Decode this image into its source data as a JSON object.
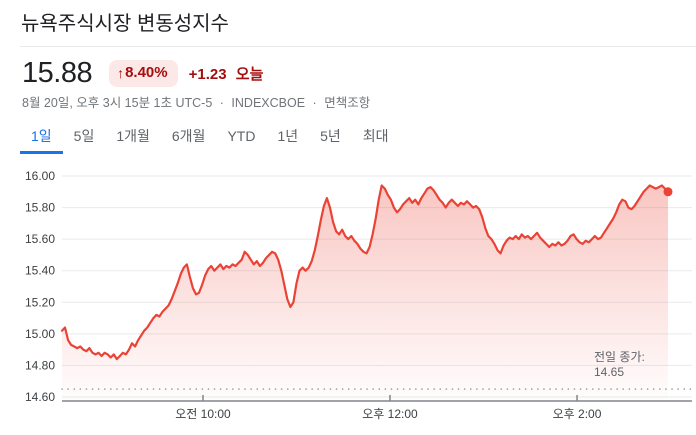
{
  "header": {
    "title": "뉴욕주식시장 변동성지수"
  },
  "quote": {
    "price": "15.88",
    "change_arrow": "↑",
    "change_percent": "8.40%",
    "change_abs": "+1.23",
    "change_period": "오늘",
    "meta_datetime": "8월 20일, 오후 3시 15분 1초 UTC-5",
    "meta_separator": "·",
    "meta_exchange": "INDEXCBOE",
    "meta_disclaimer": "면책조항",
    "colors": {
      "change_text": "#a50e0e",
      "badge_bg": "#fce8e6",
      "accent_blue": "#1a73e8",
      "line_red": "#ea4335"
    }
  },
  "range_tabs": [
    {
      "label": "1일",
      "active": true
    },
    {
      "label": "5일",
      "active": false
    },
    {
      "label": "1개월",
      "active": false
    },
    {
      "label": "6개월",
      "active": false
    },
    {
      "label": "YTD",
      "active": false
    },
    {
      "label": "1년",
      "active": false
    },
    {
      "label": "5년",
      "active": false
    },
    {
      "label": "최대",
      "active": false
    }
  ],
  "chart_data": {
    "type": "area",
    "title": "뉴욕주식시장 변동성지수 1일 차트",
    "xlabel": "",
    "ylabel": "",
    "ylim": [
      14.6,
      16.0
    ],
    "grid": true,
    "line_color": "#ea4335",
    "fill_color": "#ea4335",
    "axis_color": "#80868b",
    "grid_color": "#e8eaed",
    "tick_label_color": "#3c4043",
    "y_ticks": [
      {
        "value": 16.0,
        "label": "16.00"
      },
      {
        "value": 15.8,
        "label": "15.80"
      },
      {
        "value": 15.6,
        "label": "15.60"
      },
      {
        "value": 15.4,
        "label": "15.40"
      },
      {
        "value": 15.2,
        "label": "15.20"
      },
      {
        "value": 15.0,
        "label": "15.00"
      },
      {
        "value": 14.8,
        "label": "14.80"
      },
      {
        "value": 14.6,
        "label": "14.60"
      }
    ],
    "x_ticks": [
      {
        "label": "오전 10:00",
        "pos": 0.2238
      },
      {
        "label": "오후 12:00",
        "pos": 0.5206
      },
      {
        "label": "오후 2:00",
        "pos": 0.8175
      }
    ],
    "series_end_pos": 0.9619,
    "previous_close": {
      "label_line1": "전일 종가:",
      "label_line2": "14.65",
      "value": 14.65
    },
    "values": [
      15.02,
      15.04,
      14.96,
      14.93,
      14.92,
      14.91,
      14.92,
      14.9,
      14.89,
      14.91,
      14.88,
      14.87,
      14.88,
      14.86,
      14.88,
      14.87,
      14.85,
      14.87,
      14.84,
      14.86,
      14.88,
      14.87,
      14.9,
      14.94,
      14.92,
      14.96,
      14.99,
      15.02,
      15.04,
      15.07,
      15.1,
      15.12,
      15.11,
      15.14,
      15.16,
      15.18,
      15.22,
      15.27,
      15.32,
      15.38,
      15.42,
      15.44,
      15.36,
      15.29,
      15.25,
      15.26,
      15.31,
      15.37,
      15.41,
      15.43,
      15.4,
      15.42,
      15.44,
      15.41,
      15.43,
      15.42,
      15.44,
      15.43,
      15.45,
      15.47,
      15.52,
      15.5,
      15.47,
      15.44,
      15.46,
      15.43,
      15.45,
      15.48,
      15.5,
      15.52,
      15.51,
      15.47,
      15.4,
      15.31,
      15.22,
      15.17,
      15.2,
      15.32,
      15.4,
      15.42,
      15.4,
      15.42,
      15.46,
      15.53,
      15.62,
      15.72,
      15.81,
      15.86,
      15.8,
      15.71,
      15.65,
      15.63,
      15.66,
      15.62,
      15.6,
      15.62,
      15.59,
      15.57,
      15.54,
      15.52,
      15.51,
      15.55,
      15.63,
      15.73,
      15.85,
      15.94,
      15.92,
      15.88,
      15.85,
      15.8,
      15.77,
      15.79,
      15.82,
      15.84,
      15.86,
      15.83,
      15.85,
      15.82,
      15.86,
      15.89,
      15.92,
      15.93,
      15.91,
      15.88,
      15.85,
      15.83,
      15.8,
      15.83,
      15.85,
      15.83,
      15.81,
      15.83,
      15.82,
      15.84,
      15.82,
      15.8,
      15.81,
      15.79,
      15.74,
      15.67,
      15.62,
      15.6,
      15.57,
      15.53,
      15.51,
      15.56,
      15.59,
      15.61,
      15.6,
      15.62,
      15.6,
      15.63,
      15.61,
      15.62,
      15.6,
      15.62,
      15.64,
      15.61,
      15.59,
      15.57,
      15.55,
      15.57,
      15.56,
      15.58,
      15.56,
      15.57,
      15.59,
      15.62,
      15.63,
      15.6,
      15.58,
      15.57,
      15.59,
      15.58,
      15.6,
      15.62,
      15.6,
      15.61,
      15.64,
      15.67,
      15.7,
      15.73,
      15.77,
      15.82,
      15.85,
      15.84,
      15.8,
      15.79,
      15.81,
      15.84,
      15.87,
      15.9,
      15.92,
      15.94,
      15.93,
      15.92,
      15.93,
      15.94,
      15.92,
      15.9
    ]
  }
}
